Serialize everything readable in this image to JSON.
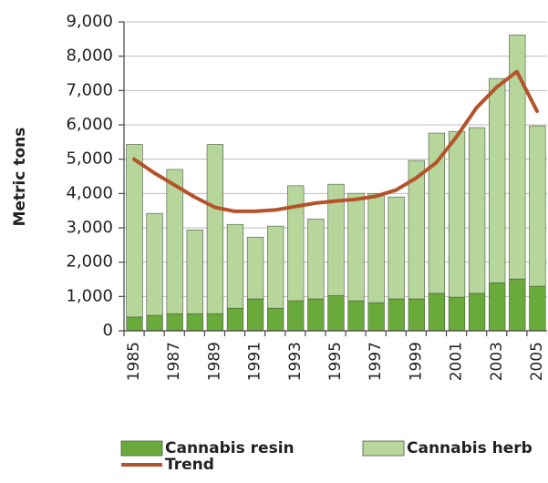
{
  "chart_data": {
    "type": "bar",
    "stacked": true,
    "y_label": "Metric tons",
    "categories": [
      "1985",
      null,
      "1987",
      null,
      "1989",
      null,
      "1991",
      null,
      "1993",
      null,
      "1995",
      null,
      "1997",
      null,
      "1999",
      null,
      "2001",
      null,
      "2003",
      null,
      "2005"
    ],
    "series": [
      {
        "name": "Cannabis resin",
        "color": "#6aaa3a",
        "values": [
          400,
          450,
          500,
          500,
          500,
          660,
          930,
          660,
          875,
          930,
          1030,
          875,
          820,
          930,
          930,
          1090,
          980,
          1090,
          1400,
          1510,
          1300
        ]
      },
      {
        "name": "Cannabis herb",
        "color": "#b7d69c",
        "values": [
          5030,
          2970,
          4200,
          2440,
          4930,
          2440,
          1800,
          2390,
          3350,
          2330,
          3240,
          3130,
          3180,
          2970,
          4030,
          4670,
          4830,
          4830,
          5950,
          7110,
          4670
        ]
      },
      {
        "name": "Trend",
        "type": "line",
        "color": "#b5532a",
        "values": [
          5000,
          4600,
          4250,
          3900,
          3600,
          3480,
          3480,
          3520,
          3620,
          3720,
          3780,
          3830,
          3920,
          4100,
          4450,
          4900,
          5650,
          6500,
          7100,
          7550,
          6400
        ]
      }
    ],
    "ylim": [
      0,
      9000
    ],
    "yticks": [
      0,
      {
        "value": 1000,
        "label": "1,000"
      },
      {
        "value": 2000,
        "label": "2,000"
      },
      {
        "value": 3000,
        "label": "3,000"
      },
      {
        "value": 4000,
        "label": "4,000"
      },
      {
        "value": 5000,
        "label": "5,000"
      },
      {
        "value": 6000,
        "label": "6,000"
      },
      {
        "value": 7000,
        "label": "7,000"
      },
      {
        "value": 8000,
        "label": "8,000"
      },
      {
        "value": 9000,
        "label": "9,000"
      }
    ],
    "grid": true,
    "legend": "bottom"
  }
}
